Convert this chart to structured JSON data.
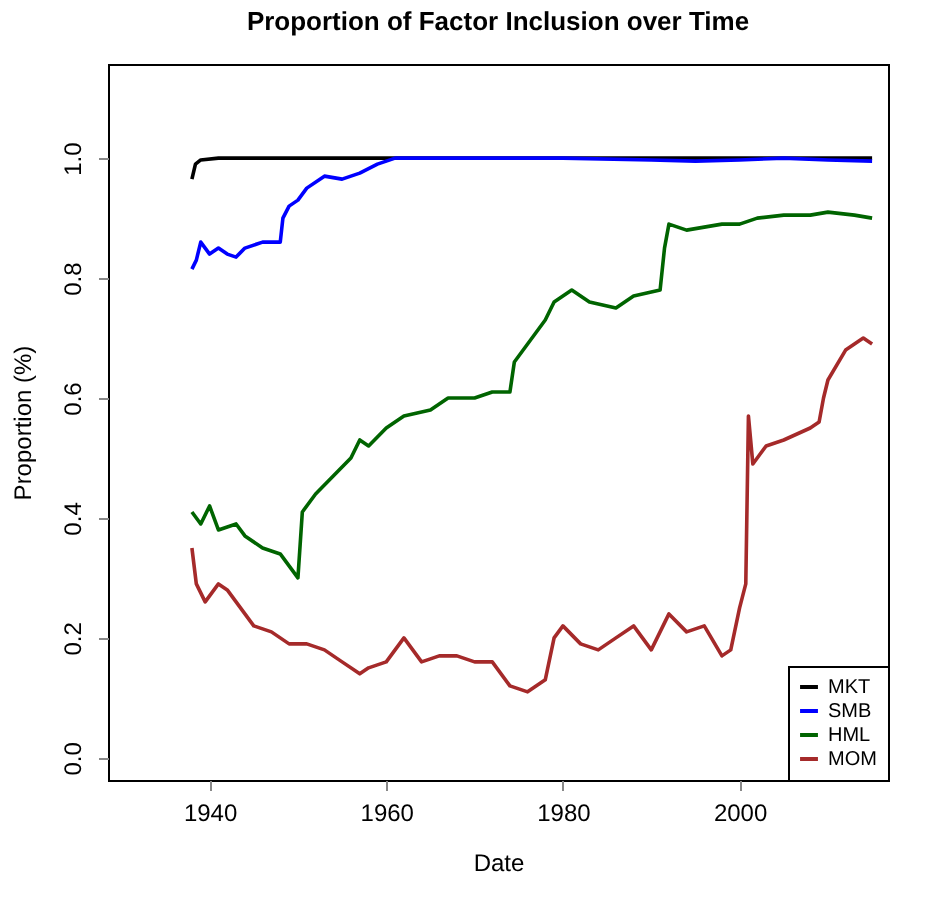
{
  "chart_data": {
    "type": "line",
    "title": "Proportion of Factor Inclusion over Time",
    "xlabel": "Date",
    "ylabel": "Proportion (%)",
    "xlim": [
      1928.5,
      2016.8
    ],
    "xticks": [
      1940,
      1960,
      1980,
      2000
    ],
    "ylim": [
      -0.037,
      1.157
    ],
    "yticks": [
      {
        "value": 0,
        "label": "0.0"
      },
      0.2,
      0.4,
      0.6,
      0.8,
      {
        "value": 1,
        "label": "1.0"
      }
    ],
    "grid": false,
    "legend": "bottom right",
    "line_style": "solid",
    "marker": "none",
    "series": [
      {
        "name": "MKT",
        "color": "#000000",
        "x": [
          1938,
          1938.4,
          1939,
          1941,
          1960,
          1990,
          2015
        ],
        "values": [
          0.965,
          0.99,
          0.997,
          1.0,
          1.0,
          1.0,
          1.0
        ]
      },
      {
        "name": "SMB",
        "color": "#0000ff",
        "x": [
          1938,
          1938.5,
          1939,
          1940,
          1941,
          1942,
          1943,
          1944,
          1946,
          1948,
          1948.3,
          1949,
          1950,
          1951,
          1953,
          1955,
          1957,
          1959,
          1961,
          1970,
          1980,
          1990,
          1995,
          2000,
          2005,
          2010,
          2015
        ],
        "values": [
          0.815,
          0.83,
          0.86,
          0.84,
          0.85,
          0.84,
          0.835,
          0.85,
          0.86,
          0.86,
          0.9,
          0.92,
          0.93,
          0.95,
          0.97,
          0.965,
          0.975,
          0.99,
          1.0,
          1.0,
          1.0,
          0.997,
          0.995,
          0.997,
          1.0,
          0.997,
          0.995
        ]
      },
      {
        "name": "HML",
        "color": "#006400",
        "x": [
          1938,
          1939,
          1940,
          1941,
          1943,
          1944,
          1946,
          1948,
          1950,
          1950.5,
          1952,
          1954,
          1956,
          1957,
          1958,
          1960,
          1962,
          1965,
          1967,
          1970,
          1972,
          1974,
          1974.5,
          1976,
          1978,
          1979,
          1980,
          1981,
          1983,
          1986,
          1988,
          1991,
          1991.5,
          1992,
          1994,
          1998,
          2000,
          2002,
          2005,
          2008,
          2010,
          2013,
          2015
        ],
        "values": [
          0.41,
          0.39,
          0.42,
          0.38,
          0.39,
          0.37,
          0.35,
          0.34,
          0.3,
          0.41,
          0.44,
          0.47,
          0.5,
          0.53,
          0.52,
          0.55,
          0.57,
          0.58,
          0.6,
          0.6,
          0.61,
          0.61,
          0.66,
          0.69,
          0.73,
          0.76,
          0.77,
          0.78,
          0.76,
          0.75,
          0.77,
          0.78,
          0.85,
          0.89,
          0.88,
          0.89,
          0.89,
          0.9,
          0.905,
          0.905,
          0.91,
          0.905,
          0.9
        ]
      },
      {
        "name": "MOM",
        "color": "#a52a2a",
        "x": [
          1938,
          1938.5,
          1939.5,
          1941,
          1942,
          1943,
          1945,
          1947,
          1949,
          1951,
          1953,
          1955,
          1957,
          1958,
          1960,
          1962,
          1964,
          1966,
          1968,
          1970,
          1972,
          1974,
          1976,
          1978,
          1979,
          1980,
          1982,
          1984,
          1986,
          1988,
          1989,
          1990,
          1992,
          1994,
          1996,
          1998,
          1999,
          2000,
          2000.7,
          2001,
          2001.5,
          2003,
          2005,
          2008,
          2009,
          2009.5,
          2010,
          2012,
          2014,
          2015
        ],
        "values": [
          0.35,
          0.29,
          0.26,
          0.29,
          0.28,
          0.26,
          0.22,
          0.21,
          0.19,
          0.19,
          0.18,
          0.16,
          0.14,
          0.15,
          0.16,
          0.2,
          0.16,
          0.17,
          0.17,
          0.16,
          0.16,
          0.12,
          0.11,
          0.13,
          0.2,
          0.22,
          0.19,
          0.18,
          0.2,
          0.22,
          0.2,
          0.18,
          0.24,
          0.21,
          0.22,
          0.17,
          0.18,
          0.25,
          0.29,
          0.57,
          0.49,
          0.52,
          0.53,
          0.55,
          0.56,
          0.6,
          0.63,
          0.68,
          0.7,
          0.69
        ]
      }
    ]
  }
}
